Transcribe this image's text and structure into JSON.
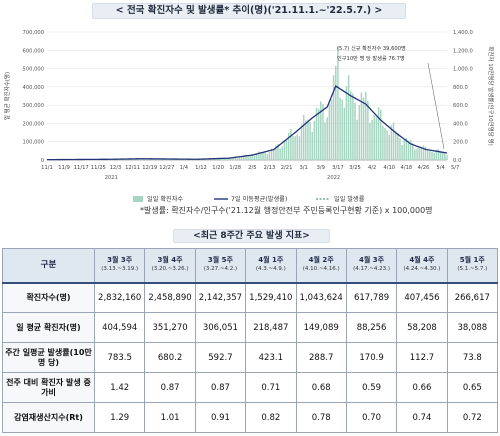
{
  "page_title": "< 전국 확진자수 및 발생률* 추이(명)('21.11.1.~'22.5.7.) >",
  "footnote": "*발생률: 확진자수/인구수('21.12월 행정안전부 주민등록인구현황 기준) x 100,000명",
  "table": {
    "title": "<최근 8주간 주요 발생 지표>",
    "corner": "구분",
    "columns": [
      {
        "label": "3월 3주",
        "sub": "(3.13.~3.19.)"
      },
      {
        "label": "3월 4주",
        "sub": "(3.20.~3.26.)"
      },
      {
        "label": "3월 5주",
        "sub": "(3.27.~4.2.)"
      },
      {
        "label": "4월 1주",
        "sub": "(4.3.~4.9.)"
      },
      {
        "label": "4월 2주",
        "sub": "(4.10.~4.16.)"
      },
      {
        "label": "4월 3주",
        "sub": "(4.17.~4.23.)"
      },
      {
        "label": "4월 4주",
        "sub": "(4.24.~4.30.)"
      },
      {
        "label": "5월 1주",
        "sub": "(5.1.~5.7.)"
      }
    ],
    "rows": [
      {
        "label": "확진자수(명)",
        "values": [
          "2,832,160",
          "2,458,890",
          "2,142,357",
          "1,529,410",
          "1,043,624",
          "617,789",
          "407,456",
          "266,617"
        ]
      },
      {
        "label": "일 평균 확진자(명)",
        "values": [
          "404,594",
          "351,270",
          "306,051",
          "218,487",
          "149,089",
          "88,256",
          "58,208",
          "38,088"
        ]
      },
      {
        "label": "주간 일평균 발생률(10만명 당)",
        "values": [
          "783.5",
          "680.2",
          "592.7",
          "423.1",
          "288.7",
          "170.9",
          "112.7",
          "73.8"
        ]
      },
      {
        "label": "전주 대비 확진자 발생 증가비",
        "values": [
          "1.42",
          "0.87",
          "0.87",
          "0.71",
          "0.68",
          "0.59",
          "0.66",
          "0.65"
        ]
      },
      {
        "label": "감염재생산지수(Rt)",
        "values": [
          "1.29",
          "1.01",
          "0.91",
          "0.82",
          "0.78",
          "0.70",
          "0.74",
          "0.72"
        ]
      }
    ]
  },
  "colors": {
    "bars": "#a6d5c1",
    "moving_avg": "#23357a",
    "rate": "#2f7e6b",
    "header": "#dfe7f1"
  },
  "chart_data": {
    "type": "bar",
    "ylabel": "일 평균 확진자수(명)",
    "y2label": "확진자 10만명당 발생률(인구10만명당 명)",
    "ylim": [
      0,
      700000
    ],
    "y2lim": [
      0,
      1400
    ],
    "y_ticks": [
      "0",
      "100,000",
      "200,000",
      "300,000",
      "400,000",
      "500,000",
      "600,000",
      "700,000"
    ],
    "y2_ticks": [
      "0.0",
      "200.0",
      "400.0",
      "600.0",
      "800.0",
      "1,000.0",
      "1,200.0",
      "1,400.0"
    ],
    "x_ticks": [
      "11/1",
      "11/9",
      "11/17",
      "11/25",
      "12/3",
      "12/11",
      "12/19",
      "12/27",
      "1/4",
      "1/12",
      "1/20",
      "1/28",
      "2/5",
      "2/13",
      "2/21",
      "3/1",
      "3/9",
      "3/17",
      "3/25",
      "4/2",
      "4/10",
      "4/18",
      "4/26",
      "5/4"
    ],
    "x_end_label": "5/7",
    "year_labels": [
      "2021",
      "2022"
    ],
    "grid": true,
    "legend": [
      "일일 확진자수",
      "7일 이동평균(발생률)",
      "일일 발생률"
    ],
    "legend_placement": "bottom",
    "annotation": [
      "(5.7) 신규 확진자수 39,600명",
      "인구10만 명 당 발생률 76.7명"
    ],
    "weekly_daily_avg": [
      {
        "week": "3월 3주",
        "value": 404594
      },
      {
        "week": "3월 4주",
        "value": 351270
      },
      {
        "week": "3월 5주",
        "value": 306051
      },
      {
        "week": "4월 1주",
        "value": 218487
      },
      {
        "week": "4월 2주",
        "value": 149089
      },
      {
        "week": "4월 3주",
        "value": 88256
      },
      {
        "week": "4월 4주",
        "value": 58208
      },
      {
        "week": "5월 1주",
        "value": 38088
      }
    ],
    "series": [
      {
        "name": "7일 이동평균(발생률)",
        "values": [
          {
            "x": "2021-11-01",
            "y": 2000
          },
          {
            "x": "2021-12-01",
            "y": 4000
          },
          {
            "x": "2021-12-15",
            "y": 7000
          },
          {
            "x": "2022-01-10",
            "y": 4000
          },
          {
            "x": "2022-01-25",
            "y": 10000
          },
          {
            "x": "2022-02-05",
            "y": 27000
          },
          {
            "x": "2022-02-15",
            "y": 57000
          },
          {
            "x": "2022-02-25",
            "y": 150000
          },
          {
            "x": "2022-03-05",
            "y": 230000
          },
          {
            "x": "2022-03-12",
            "y": 290000
          },
          {
            "x": "2022-03-16",
            "y": 404594
          },
          {
            "x": "2022-03-23",
            "y": 351270
          },
          {
            "x": "2022-03-30",
            "y": 306051
          },
          {
            "x": "2022-04-06",
            "y": 218487
          },
          {
            "x": "2022-04-13",
            "y": 149089
          },
          {
            "x": "2022-04-20",
            "y": 88256
          },
          {
            "x": "2022-04-27",
            "y": 58208
          },
          {
            "x": "2022-05-07",
            "y": 38088
          }
        ]
      }
    ],
    "daily_peak": {
      "x": "2022-03-17",
      "y": 621000
    },
    "last_point": {
      "x": "2022-05-07",
      "y": 39600
    }
  }
}
